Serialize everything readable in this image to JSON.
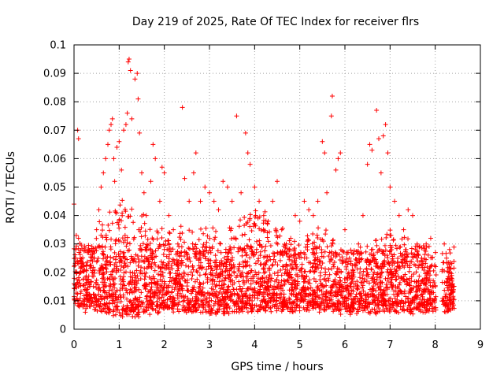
{
  "chart_data": {
    "type": "scatter",
    "title": "Day 219 of 2025, Rate Of TEC Index for receiver flrs",
    "xlabel": "GPS time / hours",
    "ylabel": "ROTI / TECUs",
    "xlim": [
      0,
      9
    ],
    "ylim": [
      0,
      0.1
    ],
    "x_ticks": [
      0,
      1,
      2,
      3,
      4,
      5,
      6,
      7,
      8,
      9
    ],
    "y_ticks": [
      0,
      0.01,
      0.02,
      0.03,
      0.04,
      0.05,
      0.06,
      0.07,
      0.08,
      0.09,
      0.1
    ],
    "x_tick_labels": [
      "0",
      "1",
      "2",
      "3",
      "4",
      "5",
      "6",
      "7",
      "8",
      "9"
    ],
    "y_tick_labels": [
      "0",
      "0.01",
      "0.02",
      "0.03",
      "0.04",
      "0.05",
      "0.06",
      "0.07",
      "0.08",
      "0.09",
      "0.1"
    ],
    "grid": true,
    "marker": "plus",
    "color": "#ff0000",
    "series": [
      {
        "name": "flrs",
        "points": [
          [
            0.0,
            0.044
          ],
          [
            0.08,
            0.07
          ],
          [
            0.1,
            0.067
          ],
          [
            0.05,
            0.033
          ],
          [
            0.1,
            0.032
          ],
          [
            0.15,
            0.02
          ],
          [
            0.2,
            0.01
          ],
          [
            0.25,
            0.006
          ],
          [
            0.3,
            0.008
          ],
          [
            0.35,
            0.012
          ],
          [
            0.4,
            0.02
          ],
          [
            0.45,
            0.025
          ],
          [
            0.5,
            0.035
          ],
          [
            0.55,
            0.042
          ],
          [
            0.6,
            0.05
          ],
          [
            0.65,
            0.055
          ],
          [
            0.7,
            0.06
          ],
          [
            0.75,
            0.065
          ],
          [
            0.78,
            0.07
          ],
          [
            0.82,
            0.072
          ],
          [
            0.85,
            0.074
          ],
          [
            0.88,
            0.06
          ],
          [
            0.9,
            0.052
          ],
          [
            0.95,
            0.064
          ],
          [
            1.0,
            0.066
          ],
          [
            1.05,
            0.056
          ],
          [
            1.1,
            0.07
          ],
          [
            1.15,
            0.072
          ],
          [
            1.18,
            0.076
          ],
          [
            1.2,
            0.094
          ],
          [
            1.22,
            0.095
          ],
          [
            1.25,
            0.091
          ],
          [
            1.28,
            0.074
          ],
          [
            1.35,
            0.088
          ],
          [
            1.4,
            0.09
          ],
          [
            1.42,
            0.081
          ],
          [
            1.45,
            0.069
          ],
          [
            1.5,
            0.055
          ],
          [
            1.55,
            0.048
          ],
          [
            1.6,
            0.04
          ],
          [
            1.7,
            0.052
          ],
          [
            1.75,
            0.065
          ],
          [
            1.8,
            0.06
          ],
          [
            1.9,
            0.045
          ],
          [
            1.95,
            0.057
          ],
          [
            2.0,
            0.055
          ],
          [
            2.1,
            0.04
          ],
          [
            2.2,
            0.035
          ],
          [
            2.3,
            0.03
          ],
          [
            2.4,
            0.078
          ],
          [
            2.45,
            0.053
          ],
          [
            2.55,
            0.045
          ],
          [
            2.65,
            0.055
          ],
          [
            2.7,
            0.062
          ],
          [
            2.8,
            0.045
          ],
          [
            2.9,
            0.05
          ],
          [
            3.0,
            0.048
          ],
          [
            3.1,
            0.045
          ],
          [
            3.2,
            0.042
          ],
          [
            3.3,
            0.052
          ],
          [
            3.4,
            0.05
          ],
          [
            3.5,
            0.045
          ],
          [
            3.6,
            0.075
          ],
          [
            3.7,
            0.048
          ],
          [
            3.8,
            0.069
          ],
          [
            3.85,
            0.062
          ],
          [
            3.9,
            0.058
          ],
          [
            4.0,
            0.05
          ],
          [
            4.1,
            0.045
          ],
          [
            4.2,
            0.04
          ],
          [
            4.3,
            0.038
          ],
          [
            4.4,
            0.045
          ],
          [
            4.5,
            0.052
          ],
          [
            4.6,
            0.035
          ],
          [
            4.7,
            0.03
          ],
          [
            4.8,
            0.032
          ],
          [
            4.9,
            0.04
          ],
          [
            5.0,
            0.038
          ],
          [
            5.1,
            0.045
          ],
          [
            5.2,
            0.042
          ],
          [
            5.3,
            0.04
          ],
          [
            5.4,
            0.045
          ],
          [
            5.5,
            0.066
          ],
          [
            5.55,
            0.062
          ],
          [
            5.6,
            0.048
          ],
          [
            5.7,
            0.075
          ],
          [
            5.72,
            0.082
          ],
          [
            5.8,
            0.056
          ],
          [
            5.85,
            0.06
          ],
          [
            5.9,
            0.062
          ],
          [
            6.0,
            0.035
          ],
          [
            6.1,
            0.025
          ],
          [
            6.2,
            0.02
          ],
          [
            6.3,
            0.03
          ],
          [
            6.4,
            0.04
          ],
          [
            6.5,
            0.058
          ],
          [
            6.55,
            0.065
          ],
          [
            6.6,
            0.063
          ],
          [
            6.7,
            0.077
          ],
          [
            6.75,
            0.067
          ],
          [
            6.8,
            0.055
          ],
          [
            6.85,
            0.068
          ],
          [
            6.9,
            0.072
          ],
          [
            6.95,
            0.062
          ],
          [
            7.0,
            0.05
          ],
          [
            7.1,
            0.045
          ],
          [
            7.2,
            0.04
          ],
          [
            7.3,
            0.035
          ],
          [
            7.4,
            0.042
          ],
          [
            7.5,
            0.04
          ],
          [
            7.6,
            0.03
          ],
          [
            7.7,
            0.025
          ],
          [
            7.8,
            0.03
          ],
          [
            7.9,
            0.032
          ],
          [
            8.0,
            0.015
          ],
          [
            8.2,
            0.03
          ],
          [
            8.25,
            0.025
          ],
          [
            8.3,
            0.02
          ],
          [
            8.35,
            0.018
          ],
          [
            8.4,
            0.015
          ]
        ]
      }
    ],
    "density_envelope": {
      "x": [
        0.0,
        0.5,
        1.0,
        1.5,
        2.0,
        2.5,
        3.0,
        3.5,
        4.0,
        4.5,
        5.0,
        5.5,
        6.0,
        6.5,
        7.0,
        7.5,
        8.0
      ],
      "low": [
        0.01,
        0.008,
        0.006,
        0.006,
        0.008,
        0.007,
        0.007,
        0.007,
        0.008,
        0.008,
        0.008,
        0.008,
        0.007,
        0.007,
        0.008,
        0.007,
        0.008
      ],
      "high": [
        0.025,
        0.035,
        0.045,
        0.04,
        0.035,
        0.035,
        0.035,
        0.035,
        0.045,
        0.035,
        0.03,
        0.035,
        0.025,
        0.03,
        0.035,
        0.03,
        0.025
      ]
    },
    "gap": [
      8.02,
      8.15
    ]
  }
}
